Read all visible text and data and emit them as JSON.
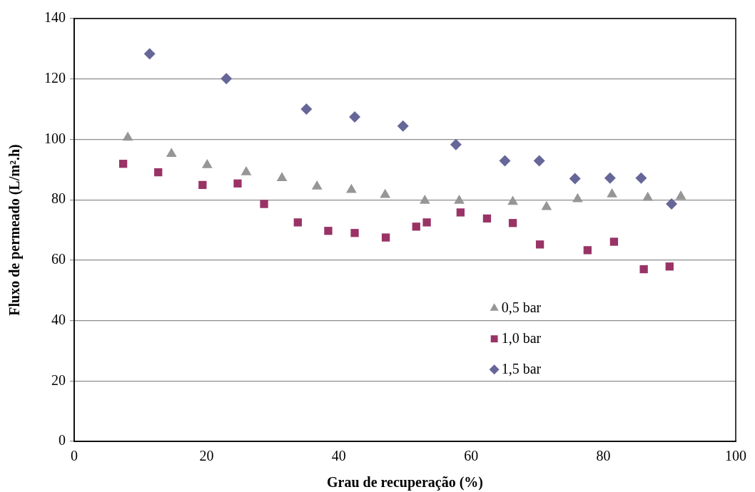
{
  "chart_data": {
    "type": "scatter",
    "xlabel": "Grau de recuperação (%)",
    "ylabel": "Fluxo de permeado (L/m².h)",
    "xlim": [
      0,
      100
    ],
    "xticks": [
      0,
      20,
      40,
      60,
      80,
      100
    ],
    "ylim": [
      0,
      140
    ],
    "yticks": [
      0,
      20,
      40,
      60,
      80,
      100,
      120,
      140
    ],
    "grid": "y",
    "legend": "bottom right",
    "series": [
      {
        "name": "0,5 bar",
        "color": "#969696",
        "marker": "triangle",
        "x": [
          8.1,
          14.7,
          20.1,
          26.0,
          31.4,
          36.7,
          41.9,
          47.0,
          53.0,
          58.2,
          66.3,
          71.4,
          76.1,
          81.3,
          86.7,
          91.7
        ],
        "values": [
          100.6,
          95.2,
          91.5,
          89.1,
          87.2,
          84.4,
          83.3,
          81.6,
          79.7,
          79.7,
          79.3,
          77.6,
          80.2,
          81.8,
          80.7,
          81.1
        ]
      },
      {
        "name": "1,0 bar",
        "color": "#993366",
        "marker": "square",
        "x": [
          7.4,
          12.7,
          19.4,
          24.7,
          28.7,
          33.8,
          38.4,
          42.4,
          47.1,
          51.7,
          53.3,
          58.4,
          62.4,
          66.3,
          70.4,
          77.6,
          81.6,
          86.1,
          90.0
        ],
        "values": [
          91.9,
          89.1,
          84.9,
          85.4,
          78.6,
          72.5,
          69.7,
          69.0,
          67.5,
          71.1,
          72.5,
          75.8,
          73.8,
          72.3,
          65.2,
          63.3,
          66.1,
          57.0,
          57.9
        ]
      },
      {
        "name": "1,5 bar",
        "color": "#666699",
        "marker": "diamond",
        "x": [
          11.4,
          23.0,
          35.1,
          42.4,
          49.7,
          57.7,
          65.1,
          70.3,
          75.7,
          81.0,
          85.7,
          90.3
        ],
        "values": [
          128.3,
          120.1,
          110.0,
          107.4,
          104.4,
          98.3,
          92.9,
          92.9,
          87.0,
          87.2,
          87.2,
          78.6
        ]
      }
    ]
  }
}
